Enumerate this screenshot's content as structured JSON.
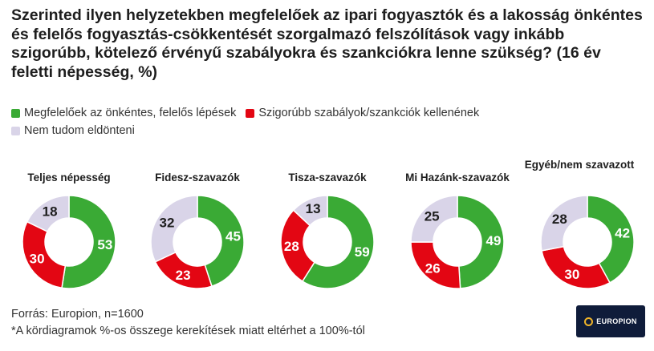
{
  "title": "Szerinted ilyen helyzetekben megfelelőek az ipari fogyasztók és a lakosság önkéntes és felelős fogyasztás-csökkentését szorgalmazó felszólítások vagy inkább szigorúbb, kötelező érvényű szabályokra és szankciókra lenne szükség? (16 év feletti népesség, %)",
  "legend": [
    {
      "label": "Megfelelőek az önkéntes, felelős lépések",
      "color": "#3aaa35"
    },
    {
      "label": "Szigorúbb szabályok/szankciók kellenének",
      "color": "#e30613"
    },
    {
      "label": "Nem tudom eldönteni",
      "color": "#d9d4e8"
    }
  ],
  "chart_data": [
    {
      "type": "pie",
      "title": "Teljes népesség",
      "series": [
        {
          "name": "Megfelelőek az önkéntes, felelős lépések",
          "value": 53
        },
        {
          "name": "Szigorúbb szabályok/szankciók kellenének",
          "value": 30
        },
        {
          "name": "Nem tudom eldönteni",
          "value": 18
        }
      ]
    },
    {
      "type": "pie",
      "title": "Fidesz-szavazók",
      "series": [
        {
          "name": "Megfelelőek az önkéntes, felelős lépések",
          "value": 45
        },
        {
          "name": "Szigorúbb szabályok/szankciók kellenének",
          "value": 23
        },
        {
          "name": "Nem tudom eldönteni",
          "value": 32
        }
      ]
    },
    {
      "type": "pie",
      "title": "Tisza-szavazók",
      "series": [
        {
          "name": "Megfelelőek az önkéntes, felelős lépések",
          "value": 59
        },
        {
          "name": "Szigorúbb szabályok/szankciók kellenének",
          "value": 28
        },
        {
          "name": "Nem tudom eldönteni",
          "value": 13
        }
      ]
    },
    {
      "type": "pie",
      "title": "Mi Hazánk-szavazók",
      "series": [
        {
          "name": "Megfelelőek az önkéntes, felelős lépések",
          "value": 49
        },
        {
          "name": "Szigorúbb szabályok/szankciók kellenének",
          "value": 26
        },
        {
          "name": "Nem tudom eldönteni",
          "value": 25
        }
      ]
    },
    {
      "type": "pie",
      "title": "Egyéb/nem szavazott",
      "series": [
        {
          "name": "Megfelelőek az önkéntes, felelős lépések",
          "value": 42
        },
        {
          "name": "Szigorúbb szabályok/szankciók kellenének",
          "value": 30
        },
        {
          "name": "Nem tudom eldönteni",
          "value": 28
        }
      ]
    }
  ],
  "footer": {
    "source": "Forrás: Europion, n=1600",
    "note": "*A kördiagramok %-os összege kerekítések miatt eltérhet a 100%-tól"
  },
  "logo": {
    "text": "EUROPION"
  }
}
